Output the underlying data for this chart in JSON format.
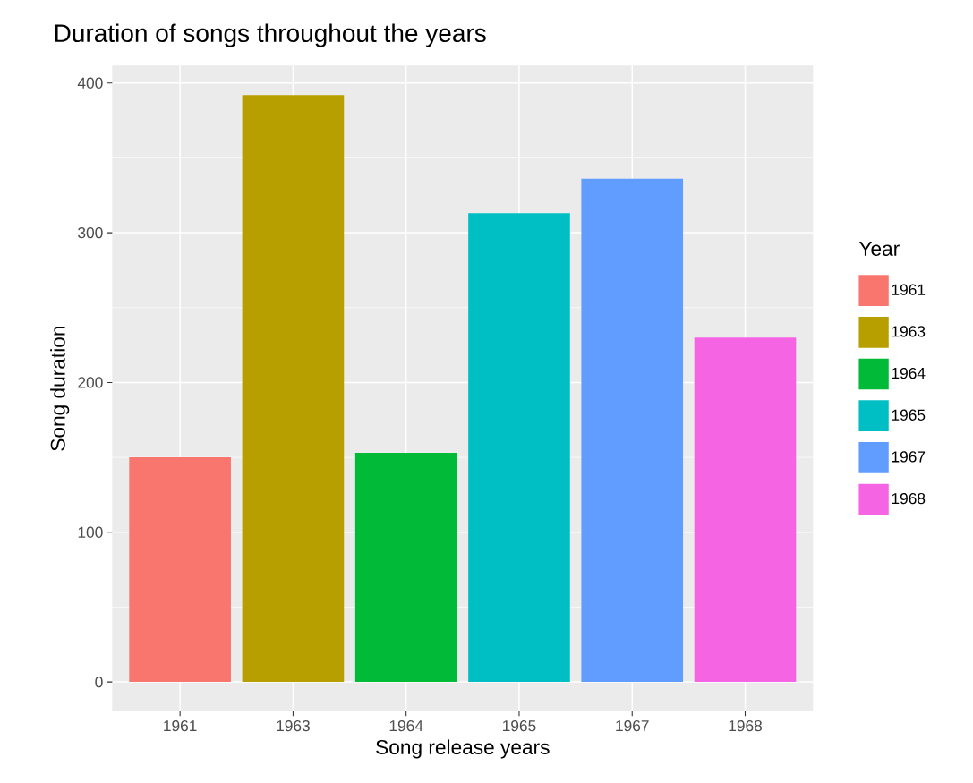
{
  "chart_data": {
    "type": "bar",
    "title": "Duration of songs throughout the years",
    "xlabel": "Song release years",
    "ylabel": "Song duration",
    "legend_title": "Year",
    "categories": [
      "1961",
      "1963",
      "1964",
      "1965",
      "1967",
      "1968"
    ],
    "series": [
      {
        "name": "1961",
        "color": "#f8766d",
        "values": [
          150,
          null,
          null,
          null,
          null,
          null
        ]
      },
      {
        "name": "1963",
        "color": "#b79f00",
        "values": [
          null,
          392,
          null,
          null,
          null,
          null
        ]
      },
      {
        "name": "1964",
        "color": "#00ba38",
        "values": [
          null,
          null,
          153,
          null,
          null,
          null
        ]
      },
      {
        "name": "1965",
        "color": "#00bfc4",
        "values": [
          null,
          null,
          null,
          313,
          null,
          null
        ]
      },
      {
        "name": "1967",
        "color": "#619cff",
        "values": [
          null,
          null,
          null,
          null,
          336,
          null
        ]
      },
      {
        "name": "1968",
        "color": "#f564e3",
        "values": [
          null,
          null,
          null,
          null,
          null,
          230
        ]
      }
    ],
    "ylim": [
      -19.6,
      411.6
    ],
    "yticks": [
      0,
      100,
      200,
      300,
      400
    ],
    "grid": true,
    "legend": "right"
  }
}
